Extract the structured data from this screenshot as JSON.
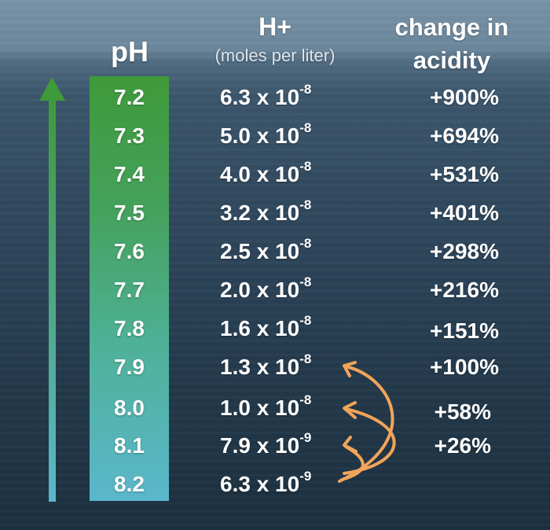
{
  "headers": {
    "ph": "pH",
    "h_plus": "H+",
    "h_plus_unit": "(moles per liter)",
    "change": "change in acidity"
  },
  "rows": [
    {
      "ph": "7.2",
      "h_mantissa": "6.3 x 10",
      "h_exp": "-8",
      "change": "+900%"
    },
    {
      "ph": "7.3",
      "h_mantissa": "5.0 x 10",
      "h_exp": "-8",
      "change": "+694%"
    },
    {
      "ph": "7.4",
      "h_mantissa": "4.0 x 10",
      "h_exp": "-8",
      "change": "+531%"
    },
    {
      "ph": "7.5",
      "h_mantissa": "3.2 x 10",
      "h_exp": "-8",
      "change": "+401%"
    },
    {
      "ph": "7.6",
      "h_mantissa": "2.5 x 10",
      "h_exp": "-8",
      "change": "+298%"
    },
    {
      "ph": "7.7",
      "h_mantissa": "2.0 x 10",
      "h_exp": "-8",
      "change": "+216%"
    },
    {
      "ph": "7.8",
      "h_mantissa": "1.6 x 10",
      "h_exp": "-8",
      "change": "+151%"
    },
    {
      "ph": "7.9",
      "h_mantissa": "1.3 x 10",
      "h_exp": "-8",
      "change": "+100%"
    },
    {
      "ph": "8.0",
      "h_mantissa": "1.0 x 10",
      "h_exp": "-8",
      "change": "+58%"
    },
    {
      "ph": "8.1",
      "h_mantissa": "7.9 x 10",
      "h_exp": "-9",
      "change": "+26%"
    },
    {
      "ph": "8.2",
      "h_mantissa": "6.3 x 10",
      "h_exp": "-9",
      "change": ""
    }
  ],
  "colors": {
    "arrow_gradient_top": "#3f9a3a",
    "arrow_gradient_bottom": "#5bb7cc",
    "curved_arrows": "#f2a45a",
    "text": "#ffffff"
  }
}
